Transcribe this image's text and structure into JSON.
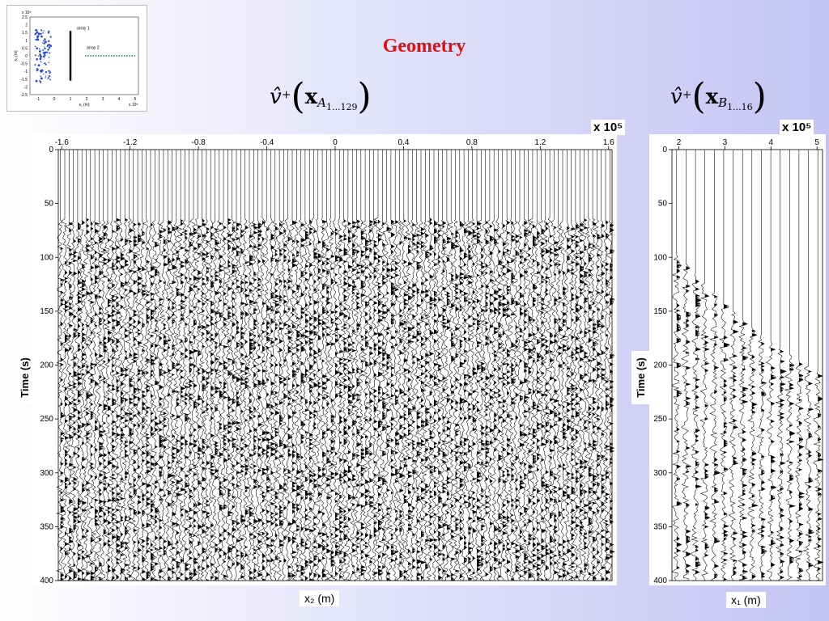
{
  "slide": {
    "title": "Geometry"
  },
  "formula_left": {
    "v": "v̂",
    "sup": "+",
    "x": "x",
    "sub": "A",
    "subsub": "1...129"
  },
  "formula_right": {
    "v": "v̂",
    "sup": "+",
    "x": "x",
    "sub": "B",
    "subsub": "1...16"
  },
  "colors": {
    "title": "#e01010",
    "background_right": "#c4c4f4",
    "trace": "#000000",
    "array_1": "#000000",
    "array_2": "#1a7a6a",
    "sources": "#2a4ad0"
  },
  "chart_data": [
    {
      "type": "line",
      "subtype": "seismic-wiggle",
      "panel": "left",
      "title": "",
      "xlabel": "x₂ (m)",
      "ylabel": "Time (s)",
      "xscale_label": "x 10⁵",
      "xlim": [
        -1.62,
        1.62
      ],
      "ylim": [
        0,
        400
      ],
      "x_ticks": [
        "-1.6",
        "-1.2",
        "-0.8",
        "-0.4",
        "0",
        "0.4",
        "0.8",
        "1.2",
        "1.6"
      ],
      "y_ticks": [
        "0",
        "50",
        "100",
        "150",
        "200",
        "250",
        "300",
        "350",
        "400"
      ],
      "trace_count": 129,
      "first_arrival_time": 65,
      "grid": false
    },
    {
      "type": "line",
      "subtype": "seismic-wiggle",
      "panel": "right",
      "title": "",
      "xlabel": "x₁ (m)",
      "ylabel": "Time (s)",
      "xscale_label": "x 10⁵",
      "xlim": [
        1.85,
        5.12
      ],
      "ylim": [
        0,
        400
      ],
      "x_ticks": [
        "2",
        "3",
        "4",
        "5"
      ],
      "y_ticks": [
        "0",
        "50",
        "100",
        "150",
        "200",
        "250",
        "300",
        "350",
        "400"
      ],
      "trace_count": 16,
      "first_arrival_times": [
        98,
        106,
        115,
        124,
        133,
        142,
        150,
        158,
        165,
        172,
        178,
        184,
        190,
        196,
        201,
        206
      ],
      "grid": false
    },
    {
      "type": "scatter",
      "panel": "inset",
      "title": "",
      "xlabel": "x₁ (m)",
      "ylabel": "x₂ (m)",
      "xscale_label": "x 10⁵",
      "yscale_label": "x 10⁵",
      "xlim": [
        -1.5,
        5.2
      ],
      "ylim": [
        -2.5,
        2.5
      ],
      "x_ticks": [
        "-1",
        "0",
        "1",
        "2",
        "3",
        "4",
        "5"
      ],
      "y_ticks": [
        "2.5",
        "2",
        "1.5",
        "1",
        "0.5",
        "0",
        "-0.5",
        "-1",
        "-1.5",
        "-2",
        "-2.5"
      ],
      "series": [
        {
          "name": "array 1",
          "kind": "vertical-line",
          "x": 1.0,
          "y_range": [
            -1.6,
            1.6
          ]
        },
        {
          "name": "array 2",
          "kind": "dotted-line",
          "x_range": [
            1.9,
            5.0
          ],
          "y": 0
        }
      ]
    }
  ]
}
